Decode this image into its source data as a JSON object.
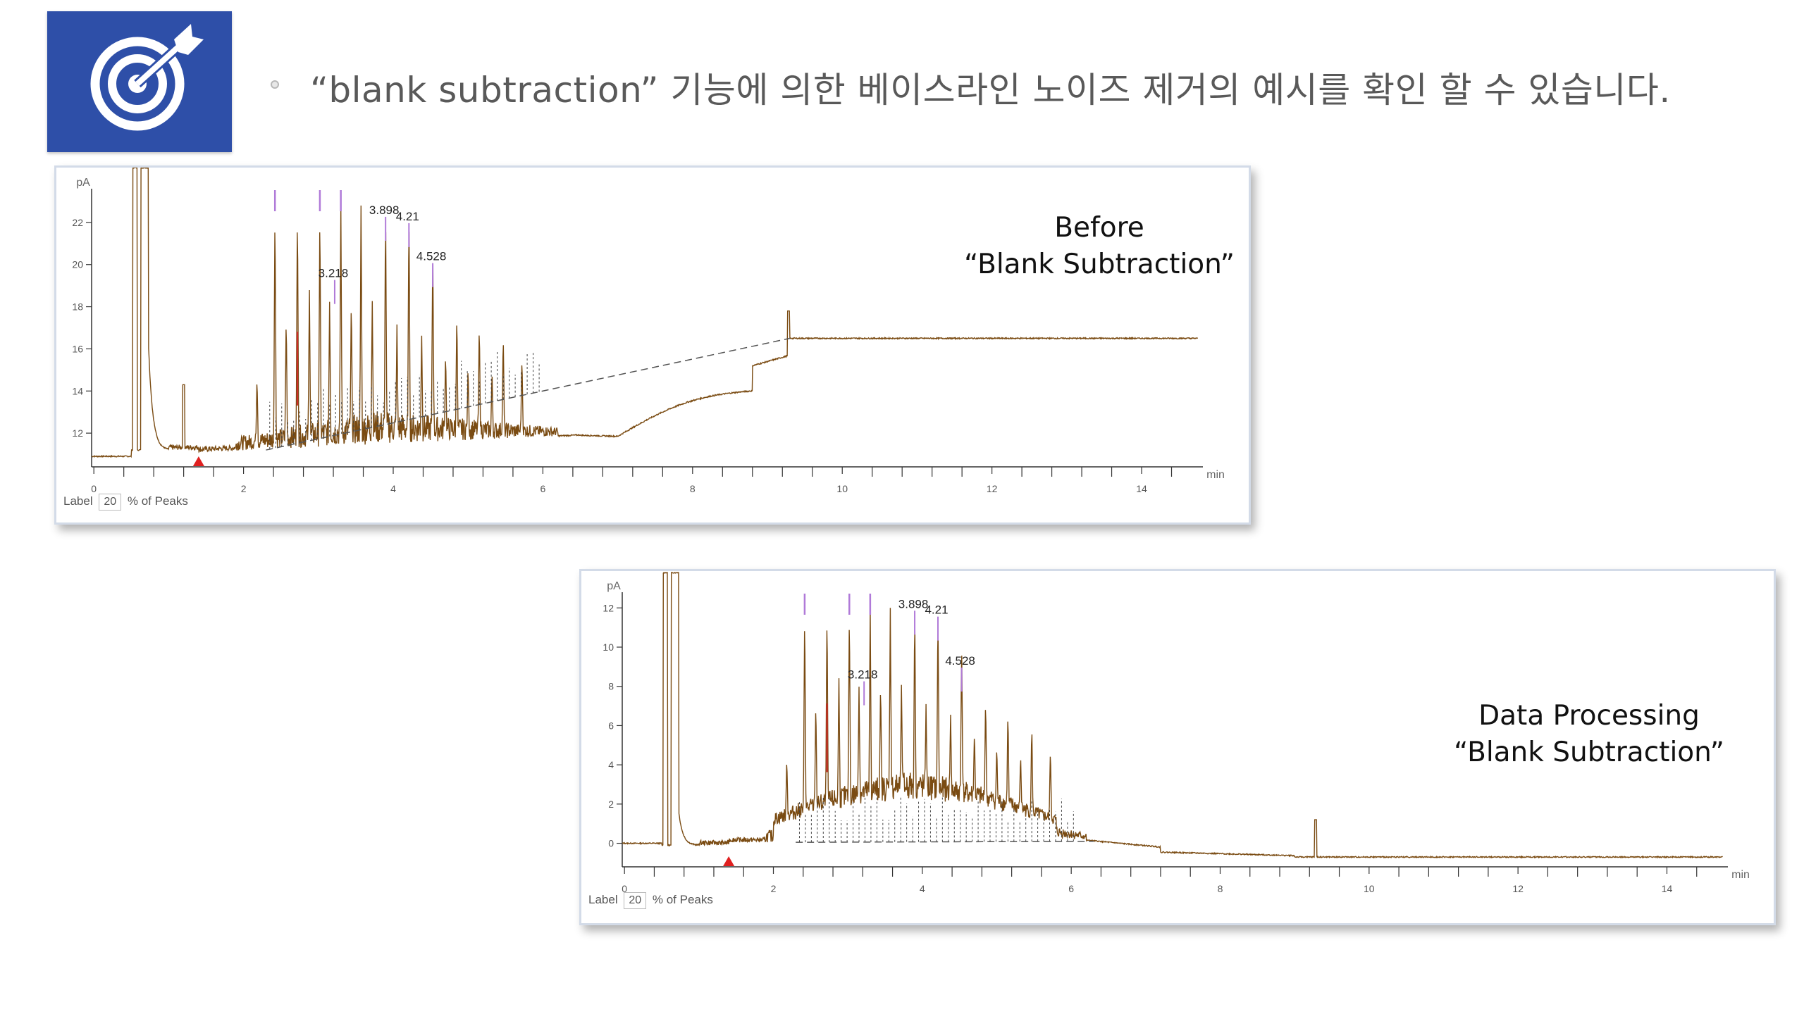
{
  "header": {
    "headline": "“blank subtraction” 기능에 의한 베이스라인 노이즈 제거의 예시를 확인 할 수 있습니다.",
    "logo_icon": "target-arrow-icon",
    "logo_color": "#2e4fa8"
  },
  "chart_data": [
    {
      "type": "line",
      "title": "Before “Blank Subtraction”",
      "caption_line1": "Before",
      "caption_line2": "“Blank Subtraction”",
      "ylabel": "pA",
      "xlabel": "min",
      "xlim": [
        -0.03,
        14.8
      ],
      "ylim": [
        10.4,
        23.6
      ],
      "x_ticks": [
        0,
        2,
        4,
        6,
        8,
        10,
        12,
        14
      ],
      "y_ticks": [
        12,
        14,
        16,
        18,
        20,
        22
      ],
      "peak_labels": [
        {
          "label": "3.218",
          "x": 3.218,
          "y": 19.4
        },
        {
          "label": "3.898",
          "x": 3.898,
          "y": 22.4
        },
        {
          "label": "4.21",
          "x": 4.21,
          "y": 22.1
        },
        {
          "label": "4.528",
          "x": 4.528,
          "y": 20.2
        }
      ],
      "trace_color": "#7a4b12",
      "line_color": "#8b5a1a",
      "footer": {
        "label": "Label",
        "value": "20",
        "suffix": "% of Peaks"
      }
    },
    {
      "type": "line",
      "title": "Data Processing “Blank Subtraction”",
      "caption_line1": "Data Processing",
      "caption_line2": "“Blank Subtraction”",
      "ylabel": "pA",
      "xlabel": "min",
      "xlim": [
        -0.03,
        14.8
      ],
      "ylim": [
        -1.2,
        12.8
      ],
      "x_ticks": [
        0,
        2,
        4,
        6,
        8,
        10,
        12,
        14
      ],
      "y_ticks": [
        0,
        2,
        4,
        6,
        8,
        10,
        12
      ],
      "peak_labels": [
        {
          "label": "3.218",
          "x": 3.218,
          "y": 8.4
        },
        {
          "label": "3.898",
          "x": 3.898,
          "y": 12.0
        },
        {
          "label": "4.21",
          "x": 4.21,
          "y": 11.7
        },
        {
          "label": "4.528",
          "x": 4.528,
          "y": 9.1
        }
      ],
      "trace_color": "#7a4b12",
      "line_color": "#8b5a1a",
      "footer": {
        "label": "Label",
        "value": "20",
        "suffix": "% of Peaks"
      }
    }
  ]
}
